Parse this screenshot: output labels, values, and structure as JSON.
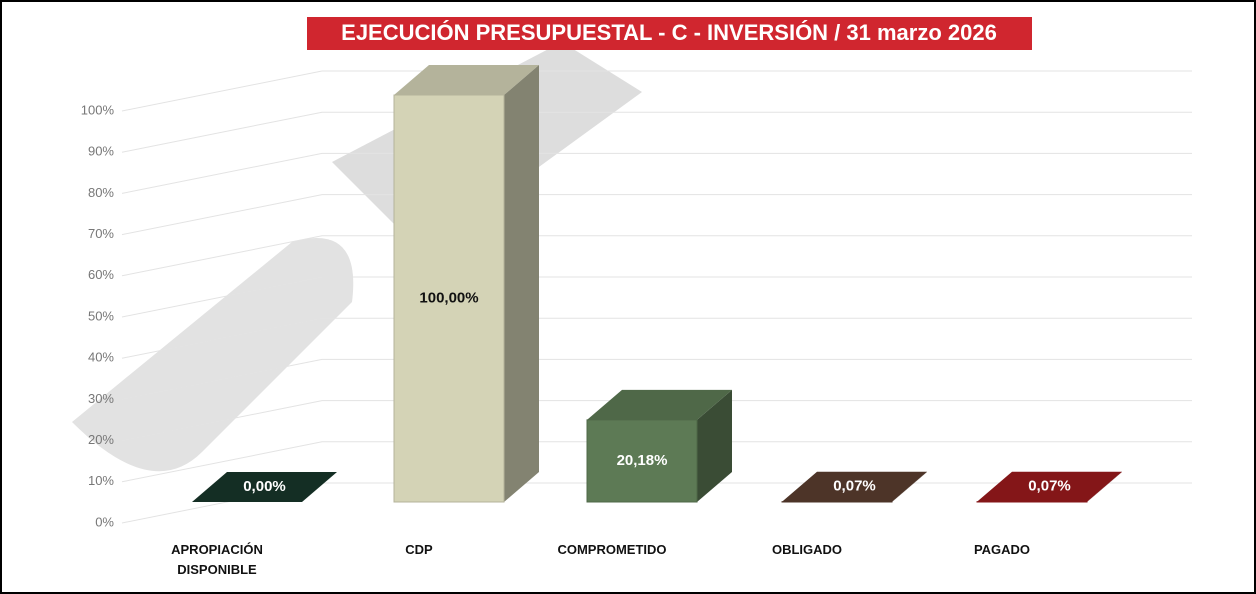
{
  "chart_data": {
    "type": "bar3d",
    "title": "EJECUCIÓN PRESUPUESTAL - C - INVERSIÓN / 31 marzo 2026",
    "categories": [
      "APROPIACIÓN DISPONIBLE",
      "CDP",
      "COMPROMETIDO",
      "OBLIGADO",
      "PAGADO"
    ],
    "values": [
      0,
      100,
      20.18,
      0.07,
      0.07
    ],
    "value_labels": [
      "0,00%",
      "100,00%",
      "20,18%",
      "0,07%",
      "0,07%"
    ],
    "colors": [
      "#17362a",
      "#d4d3b6",
      "#5d7a55",
      "#5a3d2f",
      "#9b1a1c"
    ],
    "ylim": [
      0,
      100
    ],
    "yticks": [
      {
        "value": 0,
        "label": "0%"
      },
      {
        "value": 10,
        "label": "10%"
      },
      {
        "value": 20,
        "label": "20%"
      },
      {
        "value": 30,
        "label": "30%"
      },
      {
        "value": 40,
        "label": "40%"
      },
      {
        "value": 50,
        "label": "50%"
      },
      {
        "value": 60,
        "label": "60%"
      },
      {
        "value": 70,
        "label": "70%"
      },
      {
        "value": 80,
        "label": "80%"
      },
      {
        "value": 90,
        "label": "90%"
      },
      {
        "value": 100,
        "label": "100%"
      }
    ],
    "grid": true
  }
}
